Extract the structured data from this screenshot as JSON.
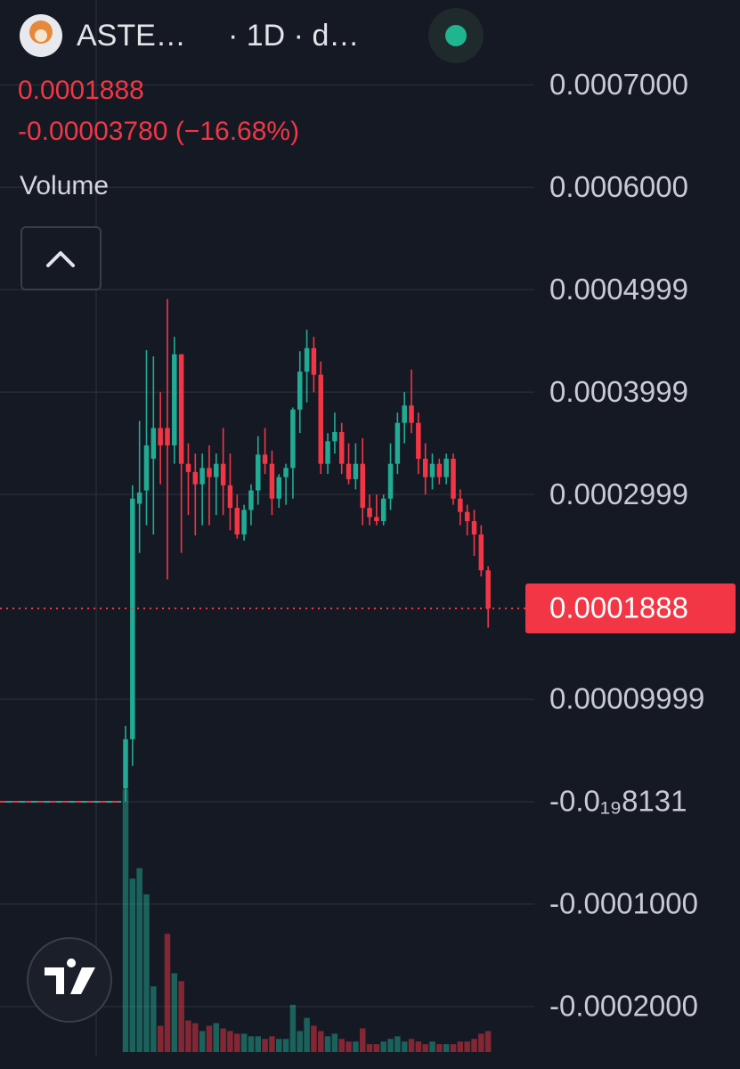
{
  "header": {
    "symbol": "ASTE…",
    "interval": "· 1D · d…",
    "price": "0.0001888",
    "change": "-0.00003780 (−16.68%)"
  },
  "chart_data": {
    "type": "candlestick",
    "volume_title": "Volume",
    "open": [
      1.3e-05,
      6.1e-05,
      0.000291,
      0.000304,
      0.000335,
      0.000365,
      0.000365,
      0.000348,
      0.000437,
      0.00033,
      0.000322,
      0.00031,
      0.000326,
      0.000317,
      0.00033,
      0.000309,
      0.000287,
      0.000261,
      0.000285,
      0.000304,
      0.000339,
      0.00033,
      0.000296,
      0.000317,
      0.000326,
      0.000383,
      0.00042,
      0.000443,
      0.000417,
      0.00033,
      0.000352,
      0.000361,
      0.00033,
      0.000315,
      0.00033,
      0.000287,
      0.000278,
      0.000274,
      0.000296,
      0.00033,
      0.00037,
      0.000387,
      0.00037,
      0.000335,
      0.000317,
      0.00033,
      0.000317,
      0.000335,
      0.000296,
      0.000283,
      0.000274,
      0.000261,
      0.000226
    ],
    "high": [
      7.4e-05,
      0.000309,
      0.000372,
      0.000441,
      0.000435,
      0.0004,
      0.000491,
      0.000454,
      0.000437,
      0.00035,
      0.00034,
      0.00034,
      0.000348,
      0.00034,
      0.000365,
      0.00034,
      0.0003,
      0.00029,
      0.00031,
      0.000357,
      0.000365,
      0.000343,
      0.00032,
      0.00033,
      0.000385,
      0.00044,
      0.000461,
      0.000454,
      0.00043,
      0.00036,
      0.00038,
      0.00037,
      0.00035,
      0.00035,
      0.000355,
      0.0003,
      0.0003,
      0.0003,
      0.00035,
      0.00038,
      0.0004,
      0.000422,
      0.00038,
      0.00035,
      0.00034,
      0.000335,
      0.00034,
      0.00034,
      0.000305,
      0.00029,
      0.000285,
      0.00027,
      0.00023
    ],
    "low": [
      0,
      3.5e-05,
      0.000243,
      0.00027,
      0.000261,
      0.00031,
      0.000217,
      0.00033,
      0.000243,
      0.00028,
      0.00026,
      0.00027,
      0.00027,
      0.00028,
      0.00028,
      0.000265,
      0.000257,
      0.000255,
      0.00027,
      0.00029,
      0.00032,
      0.00028,
      0.000287,
      0.00029,
      0.000296,
      0.00036,
      0.00039,
      0.0004,
      0.00032,
      0.00032,
      0.00034,
      0.00032,
      0.00031,
      0.000305,
      0.00027,
      0.00027,
      0.00027,
      0.00027,
      0.000285,
      0.00032,
      0.00035,
      0.00036,
      0.00032,
      0.0003,
      0.000305,
      0.00031,
      0.00031,
      0.00029,
      0.00027,
      0.00026,
      0.00024,
      0.00022,
      0.00017
    ],
    "close": [
      6.1e-05,
      0.000296,
      0.000302,
      0.000348,
      0.000365,
      0.000348,
      0.000348,
      0.000437,
      0.00033,
      0.000322,
      0.00031,
      0.000326,
      0.000317,
      0.00033,
      0.000309,
      0.000287,
      0.000261,
      0.000285,
      0.000304,
      0.000339,
      0.00033,
      0.000296,
      0.000317,
      0.000326,
      0.000383,
      0.00042,
      0.000443,
      0.000417,
      0.00033,
      0.000352,
      0.000361,
      0.00033,
      0.000315,
      0.00033,
      0.000287,
      0.000278,
      0.000274,
      0.000296,
      0.00033,
      0.00037,
      0.000387,
      0.00037,
      0.000335,
      0.000317,
      0.00033,
      0.000317,
      0.000335,
      0.000296,
      0.000283,
      0.000274,
      0.000261,
      0.000226,
      0.0001888
    ],
    "volume": [
      100,
      66,
      70,
      60,
      25,
      10,
      45,
      30,
      27,
      12,
      11,
      8,
      10,
      11,
      9,
      8,
      7,
      7,
      6,
      6,
      5,
      6,
      5,
      5,
      18,
      8,
      13,
      10,
      8,
      6,
      7,
      5,
      4,
      4,
      9,
      3,
      3,
      4,
      5,
      6,
      4,
      5,
      4,
      3,
      4,
      3,
      3,
      3,
      4,
      4,
      5,
      7,
      8
    ],
    "up_color": "#22ab94",
    "down_color": "#f23645",
    "last_price": 0.0001888,
    "ylim": [
      -0.000248,
      0.000783
    ],
    "yticks": [
      {
        "value": 0.0007,
        "label": "0.0007000"
      },
      {
        "value": 0.0006,
        "label": "0.0006000"
      },
      {
        "value": 0.0005,
        "label": "0.0004999"
      },
      {
        "value": 0.0004,
        "label": "0.0003999"
      },
      {
        "value": 0.0003,
        "label": "0.0002999"
      },
      {
        "value": 0.0001,
        "label": "0.00009999"
      },
      {
        "value": -8.131e-20,
        "label": "-0.0₁₉8131"
      },
      {
        "value": -0.0001,
        "label": "-0.0001000"
      },
      {
        "value": -0.0002,
        "label": "-0.0002000"
      }
    ],
    "grid": true
  }
}
